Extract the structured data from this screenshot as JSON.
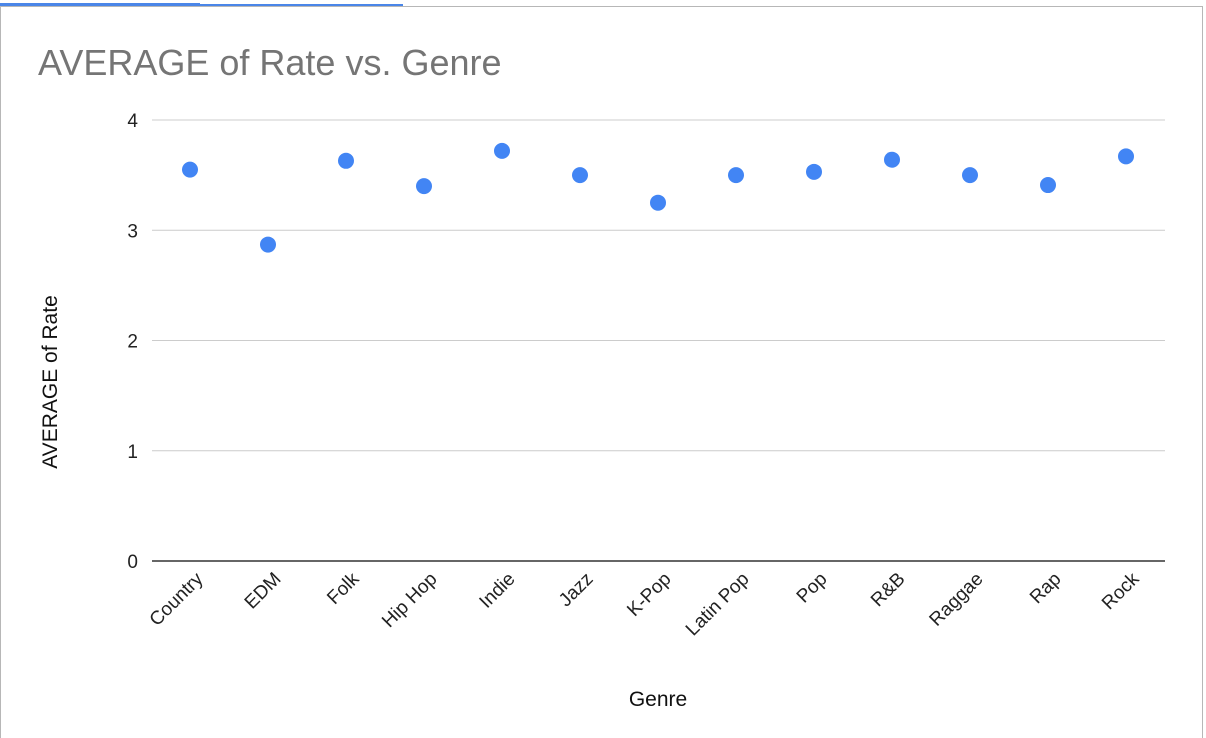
{
  "chart_data": {
    "type": "scatter",
    "title": "AVERAGE of Rate vs. Genre",
    "xlabel": "Genre",
    "ylabel": "AVERAGE of Rate",
    "categories": [
      "Country",
      "EDM",
      "Folk",
      "Hip Hop",
      "Indie",
      "Jazz",
      "K-Pop",
      "Latin Pop",
      "Pop",
      "R&B",
      "Raggae",
      "Rap",
      "Rock"
    ],
    "values": [
      3.55,
      2.87,
      3.63,
      3.4,
      3.72,
      3.5,
      3.25,
      3.5,
      3.53,
      3.64,
      3.5,
      3.41,
      3.67
    ],
    "ylim": [
      0,
      4
    ],
    "yticks": [
      "0",
      "1",
      "2",
      "3",
      "4"
    ],
    "grid": true,
    "legend": "none",
    "colors": {
      "point": "#4285f4",
      "grid": "#cccccc",
      "baseline": "#333333"
    }
  }
}
